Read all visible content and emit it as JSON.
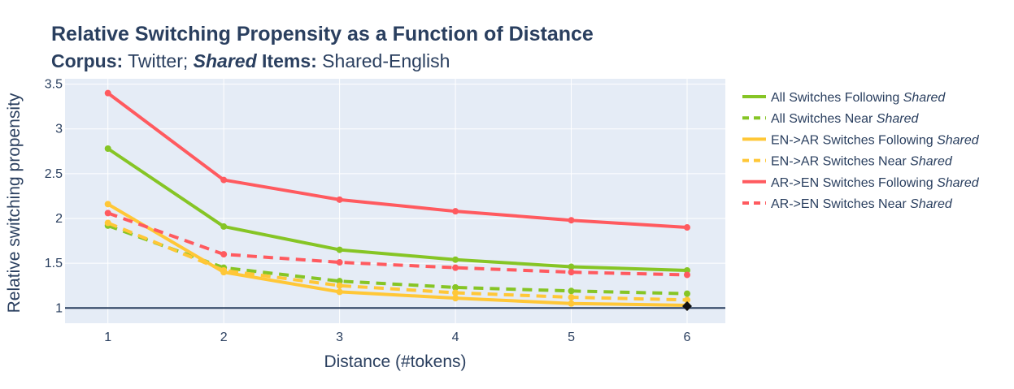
{
  "chart_data": {
    "type": "line",
    "title": "Relative Switching Propensity as a Function of Distance",
    "subtitle": {
      "corpus_label": "Corpus:",
      "corpus_value": " Twitter; ",
      "shared_word": "Shared",
      "items_label": " Items:",
      "items_value": " Shared-English"
    },
    "xlabel": "Distance (#tokens)",
    "ylabel": "Relative switching propensity",
    "x": [
      1,
      2,
      3,
      4,
      5,
      6
    ],
    "xlim": [
      0.63,
      6.33
    ],
    "ylim": [
      0.83,
      3.56
    ],
    "x_ticks": [
      1,
      2,
      3,
      4,
      5,
      6
    ],
    "y_ticks": [
      1,
      1.5,
      2,
      2.5,
      3,
      3.5
    ],
    "x_tick_labels": [
      "1",
      "2",
      "3",
      "4",
      "5",
      "6"
    ],
    "y_tick_labels": [
      "1",
      "1.5",
      "2",
      "2.5",
      "3",
      "3.5"
    ],
    "reference_line": 1,
    "grid": true,
    "legend_position": "right",
    "series": [
      {
        "legend_prefix": "All Switches Following ",
        "legend_italic": "Shared",
        "color": "#86c525",
        "dash": "solid",
        "values": [
          2.78,
          1.91,
          1.65,
          1.54,
          1.46,
          1.42
        ]
      },
      {
        "legend_prefix": "All Switches Near ",
        "legend_italic": "Shared",
        "color": "#86c525",
        "dash": "dash",
        "values": [
          1.92,
          1.45,
          1.3,
          1.23,
          1.19,
          1.16
        ]
      },
      {
        "legend_prefix": "EN->AR Switches Following ",
        "legend_italic": "Shared",
        "color": "#ffc737",
        "dash": "solid",
        "values": [
          2.16,
          1.4,
          1.18,
          1.11,
          1.05,
          1.03
        ]
      },
      {
        "legend_prefix": "EN->AR Switches Near ",
        "legend_italic": "Shared",
        "color": "#ffc737",
        "dash": "dash",
        "values": [
          1.95,
          1.42,
          1.25,
          1.17,
          1.12,
          1.09
        ]
      },
      {
        "legend_prefix": "AR->EN Switches Following ",
        "legend_italic": "Shared",
        "color": "#ff5a5f",
        "dash": "solid",
        "values": [
          3.4,
          2.43,
          2.21,
          2.08,
          1.98,
          1.9
        ]
      },
      {
        "legend_prefix": "AR->EN Switches Near ",
        "legend_italic": "Shared",
        "color": "#ff5a5f",
        "dash": "dash",
        "values": [
          2.06,
          1.6,
          1.51,
          1.45,
          1.4,
          1.37
        ]
      }
    ],
    "marker_point": {
      "x": 6,
      "y": 1.02,
      "color": "#111111",
      "shape": "diamond"
    }
  }
}
